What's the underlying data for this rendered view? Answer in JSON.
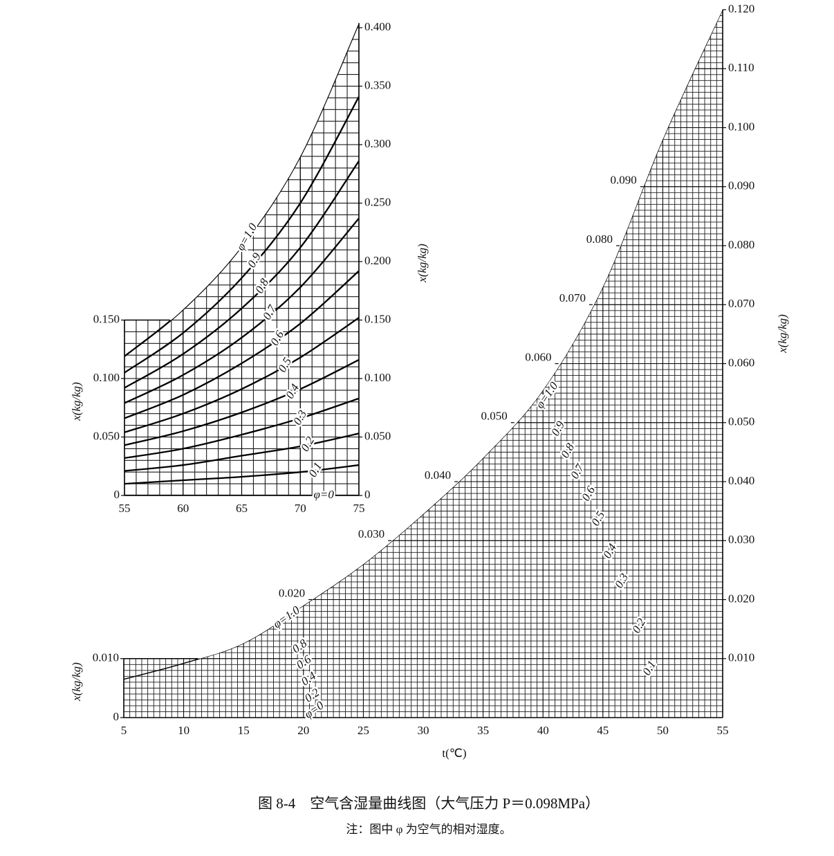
{
  "chart_data": [
    {
      "type": "line",
      "x": [
        5,
        10,
        15,
        20,
        25,
        30,
        35,
        40,
        45,
        50,
        55
      ],
      "xlim": [
        5,
        55
      ],
      "xticks": [
        5,
        10,
        15,
        20,
        25,
        30,
        35,
        40,
        45,
        50,
        55
      ],
      "ylim": [
        0,
        0.12
      ],
      "yticks": [
        {
          "value": 0.01,
          "label": "0.010"
        },
        {
          "value": 0.02,
          "label": "0.020"
        },
        {
          "value": 0.03,
          "label": "0.030"
        },
        {
          "value": 0.04,
          "label": "0.040"
        },
        {
          "value": 0.05,
          "label": "0.050"
        },
        {
          "value": 0.06,
          "label": "0.060"
        },
        {
          "value": 0.07,
          "label": "0.070"
        },
        {
          "value": 0.08,
          "label": "0.080"
        },
        {
          "value": 0.09,
          "label": "0.090"
        },
        {
          "value": 0.1,
          "label": "0.100"
        },
        {
          "value": 0.11,
          "label": "0.110"
        },
        {
          "value": 0.12,
          "label": "0.120"
        }
      ],
      "yticks_left": [
        0,
        {
          "value": 0.01,
          "label": "0.010"
        }
      ],
      "curve_ticks": [
        {
          "value": 0.02,
          "label": "0.020"
        },
        {
          "value": 0.03,
          "label": "0.030"
        },
        {
          "value": 0.04,
          "label": "0.040"
        },
        {
          "value": 0.05,
          "label": "0.050"
        },
        {
          "value": 0.06,
          "label": "0.060"
        },
        {
          "value": 0.07,
          "label": "0.070"
        },
        {
          "value": 0.08,
          "label": "0.080"
        },
        {
          "value": 0.09,
          "label": "0.090"
        }
      ],
      "series": [
        {
          "name": "φ=1.0",
          "color": "#000000",
          "values": [
            0.0065,
            0.0092,
            0.0126,
            0.019,
            0.026,
            0.0345,
            0.044,
            0.0555,
            0.073,
            0.098,
            0.12
          ]
        }
      ],
      "phi_labels_upper": [
        "0.9",
        "0.8",
        "0.7",
        "0.6",
        "0.5",
        "0.4",
        "0.3",
        "0.2",
        "0.1"
      ],
      "phi_labels_lower": [
        "φ=1.0",
        "0.8",
        "0.6",
        "0.4",
        "0.2",
        "φ=0"
      ],
      "xlabel": "t(℃)",
      "ylabel": "x(kg/kg)",
      "ylabel_right": "x(kg/kg)",
      "grid": true
    },
    {
      "type": "line",
      "x": [
        55,
        60,
        65,
        70,
        75
      ],
      "xlim": [
        55,
        75
      ],
      "xticks": [
        55,
        60,
        65,
        70,
        75
      ],
      "ylim": [
        0,
        0.4
      ],
      "yticks": [
        0,
        {
          "value": 0.05,
          "label": "0.050"
        },
        {
          "value": 0.1,
          "label": "0.100"
        },
        {
          "value": 0.15,
          "label": "0.150"
        },
        {
          "value": 0.2,
          "label": "0.200"
        },
        {
          "value": 0.25,
          "label": "0.250"
        },
        {
          "value": 0.3,
          "label": "0.300"
        },
        {
          "value": 0.35,
          "label": "0.350"
        },
        {
          "value": 0.4,
          "label": "0.400"
        }
      ],
      "yticks_left": [
        0,
        {
          "value": 0.05,
          "label": "0.050"
        },
        {
          "value": 0.1,
          "label": "0.100"
        },
        {
          "value": 0.15,
          "label": "0.150"
        }
      ],
      "series": [
        {
          "name": "φ=1.0",
          "color": "#000000",
          "values": [
            0.119,
            0.159,
            0.213,
            0.29,
            0.404
          ]
        },
        {
          "name": "0.9",
          "color": "#000000",
          "values": [
            0.105,
            0.139,
            0.186,
            0.25,
            0.341
          ]
        },
        {
          "name": "0.8",
          "color": "#000000",
          "values": [
            0.092,
            0.121,
            0.16,
            0.212,
            0.286
          ]
        },
        {
          "name": "0.7",
          "color": "#000000",
          "values": [
            0.079,
            0.103,
            0.135,
            0.178,
            0.237
          ]
        },
        {
          "name": "0.6",
          "color": "#000000",
          "values": [
            0.066,
            0.086,
            0.113,
            0.147,
            0.192
          ]
        },
        {
          "name": "0.5",
          "color": "#000000",
          "values": [
            0.054,
            0.07,
            0.091,
            0.118,
            0.152
          ]
        },
        {
          "name": "0.4",
          "color": "#000000",
          "values": [
            0.043,
            0.055,
            0.071,
            0.091,
            0.116
          ]
        },
        {
          "name": "0.3",
          "color": "#000000",
          "values": [
            0.032,
            0.04,
            0.052,
            0.066,
            0.083
          ]
        },
        {
          "name": "0.2",
          "color": "#000000",
          "values": [
            0.021,
            0.026,
            0.034,
            0.042,
            0.053
          ]
        },
        {
          "name": "0.1",
          "color": "#000000",
          "values": [
            0.01,
            0.013,
            0.016,
            0.02,
            0.026
          ]
        },
        {
          "name": "φ=0",
          "color": "#000000",
          "values": [
            0,
            0,
            0,
            0,
            0
          ]
        }
      ],
      "ylabel": "x(kg/kg)",
      "ylabel_right": "x(kg/kg)",
      "grid": true
    }
  ],
  "caption": "图 8-4　空气含湿量曲线图（大气压力 P＝0.098MPa）",
  "note": "注：图中 φ 为空气的相对湿度。"
}
